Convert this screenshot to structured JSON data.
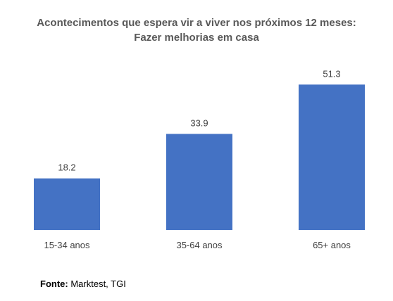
{
  "chart_data": {
    "type": "bar",
    "title": "Acontecimentos que espera vir a viver nos próximos 12 meses:",
    "subtitle": "Fazer melhorias em casa",
    "categories": [
      "15-34 anos",
      "35-64 anos",
      "65+ anos"
    ],
    "values": [
      18.2,
      33.9,
      51.3
    ],
    "value_labels": [
      "18.2",
      "33.9",
      "51.3"
    ],
    "xlabel": "",
    "ylabel": "",
    "ylim": [
      0,
      55
    ],
    "grid": false,
    "legend": "none",
    "bar_color": "#4472c4"
  },
  "source": {
    "label": "Fonte:",
    "text": "Marktest, TGI"
  }
}
